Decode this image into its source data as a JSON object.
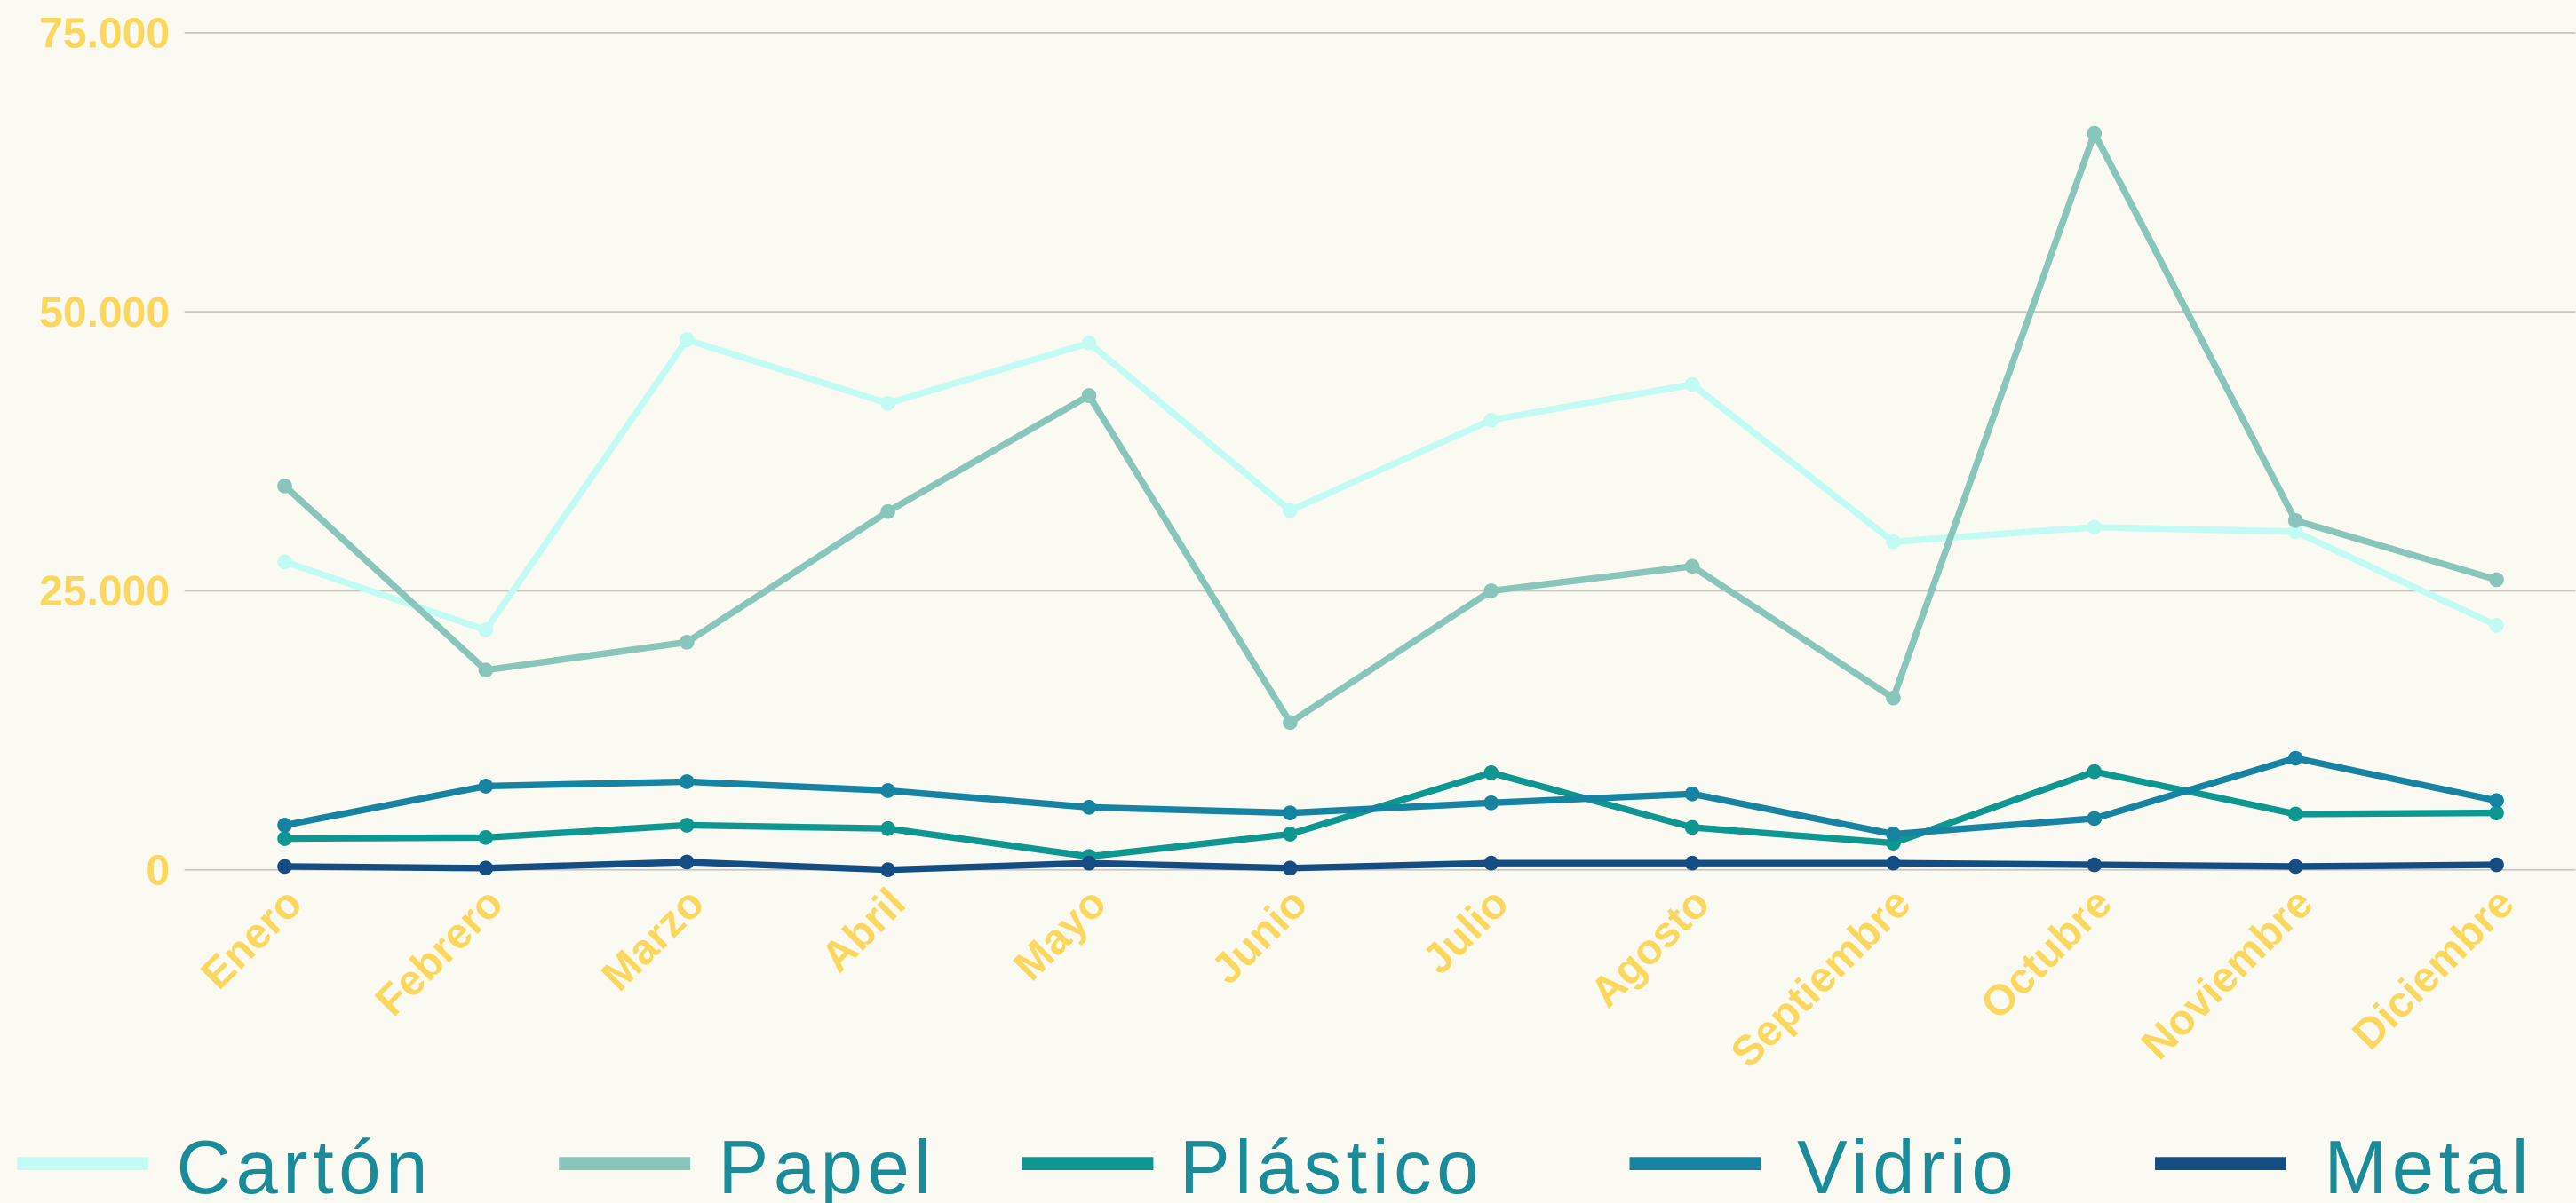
{
  "chart_data": {
    "type": "line",
    "categories": [
      "Enero",
      "Febrero",
      "Marzo",
      "Abril",
      "Mayo",
      "Junio",
      "Julio",
      "Agosto",
      "Septiembre",
      "Octubre",
      "Noviembre",
      "Diciembre"
    ],
    "series": [
      {
        "name": "Cartón",
        "color": "#c2fbf3",
        "values": [
          27600,
          21500,
          47500,
          41800,
          47200,
          32200,
          40300,
          43500,
          29400,
          30700,
          30300,
          21900
        ]
      },
      {
        "name": "Papel",
        "color": "#88c5bb",
        "values": [
          34400,
          17900,
          20400,
          32100,
          42500,
          13200,
          25000,
          27200,
          15400,
          66000,
          31300,
          26000
        ]
      },
      {
        "name": "Plástico",
        "color": "#0e9690",
        "values": [
          2800,
          2900,
          4000,
          3700,
          1200,
          3200,
          8700,
          3800,
          2400,
          8800,
          5000,
          5100
        ]
      },
      {
        "name": "Vidrio",
        "color": "#1583a1",
        "values": [
          4000,
          7500,
          7900,
          7100,
          5600,
          5100,
          6000,
          6800,
          3200,
          4600,
          10000,
          6200
        ]
      },
      {
        "name": "Metal",
        "color": "#134d84",
        "values": [
          300,
          150,
          700,
          0,
          600,
          150,
          600,
          600,
          600,
          450,
          300,
          450
        ]
      }
    ],
    "ylim": [
      0,
      75000
    ],
    "yticks": [
      {
        "value": 0,
        "label": "0"
      },
      {
        "value": 25000,
        "label": "25.000"
      },
      {
        "value": 50000,
        "label": "50.000"
      },
      {
        "value": 75000,
        "label": "75.000"
      }
    ],
    "grid": true,
    "legend": "bottom"
  }
}
